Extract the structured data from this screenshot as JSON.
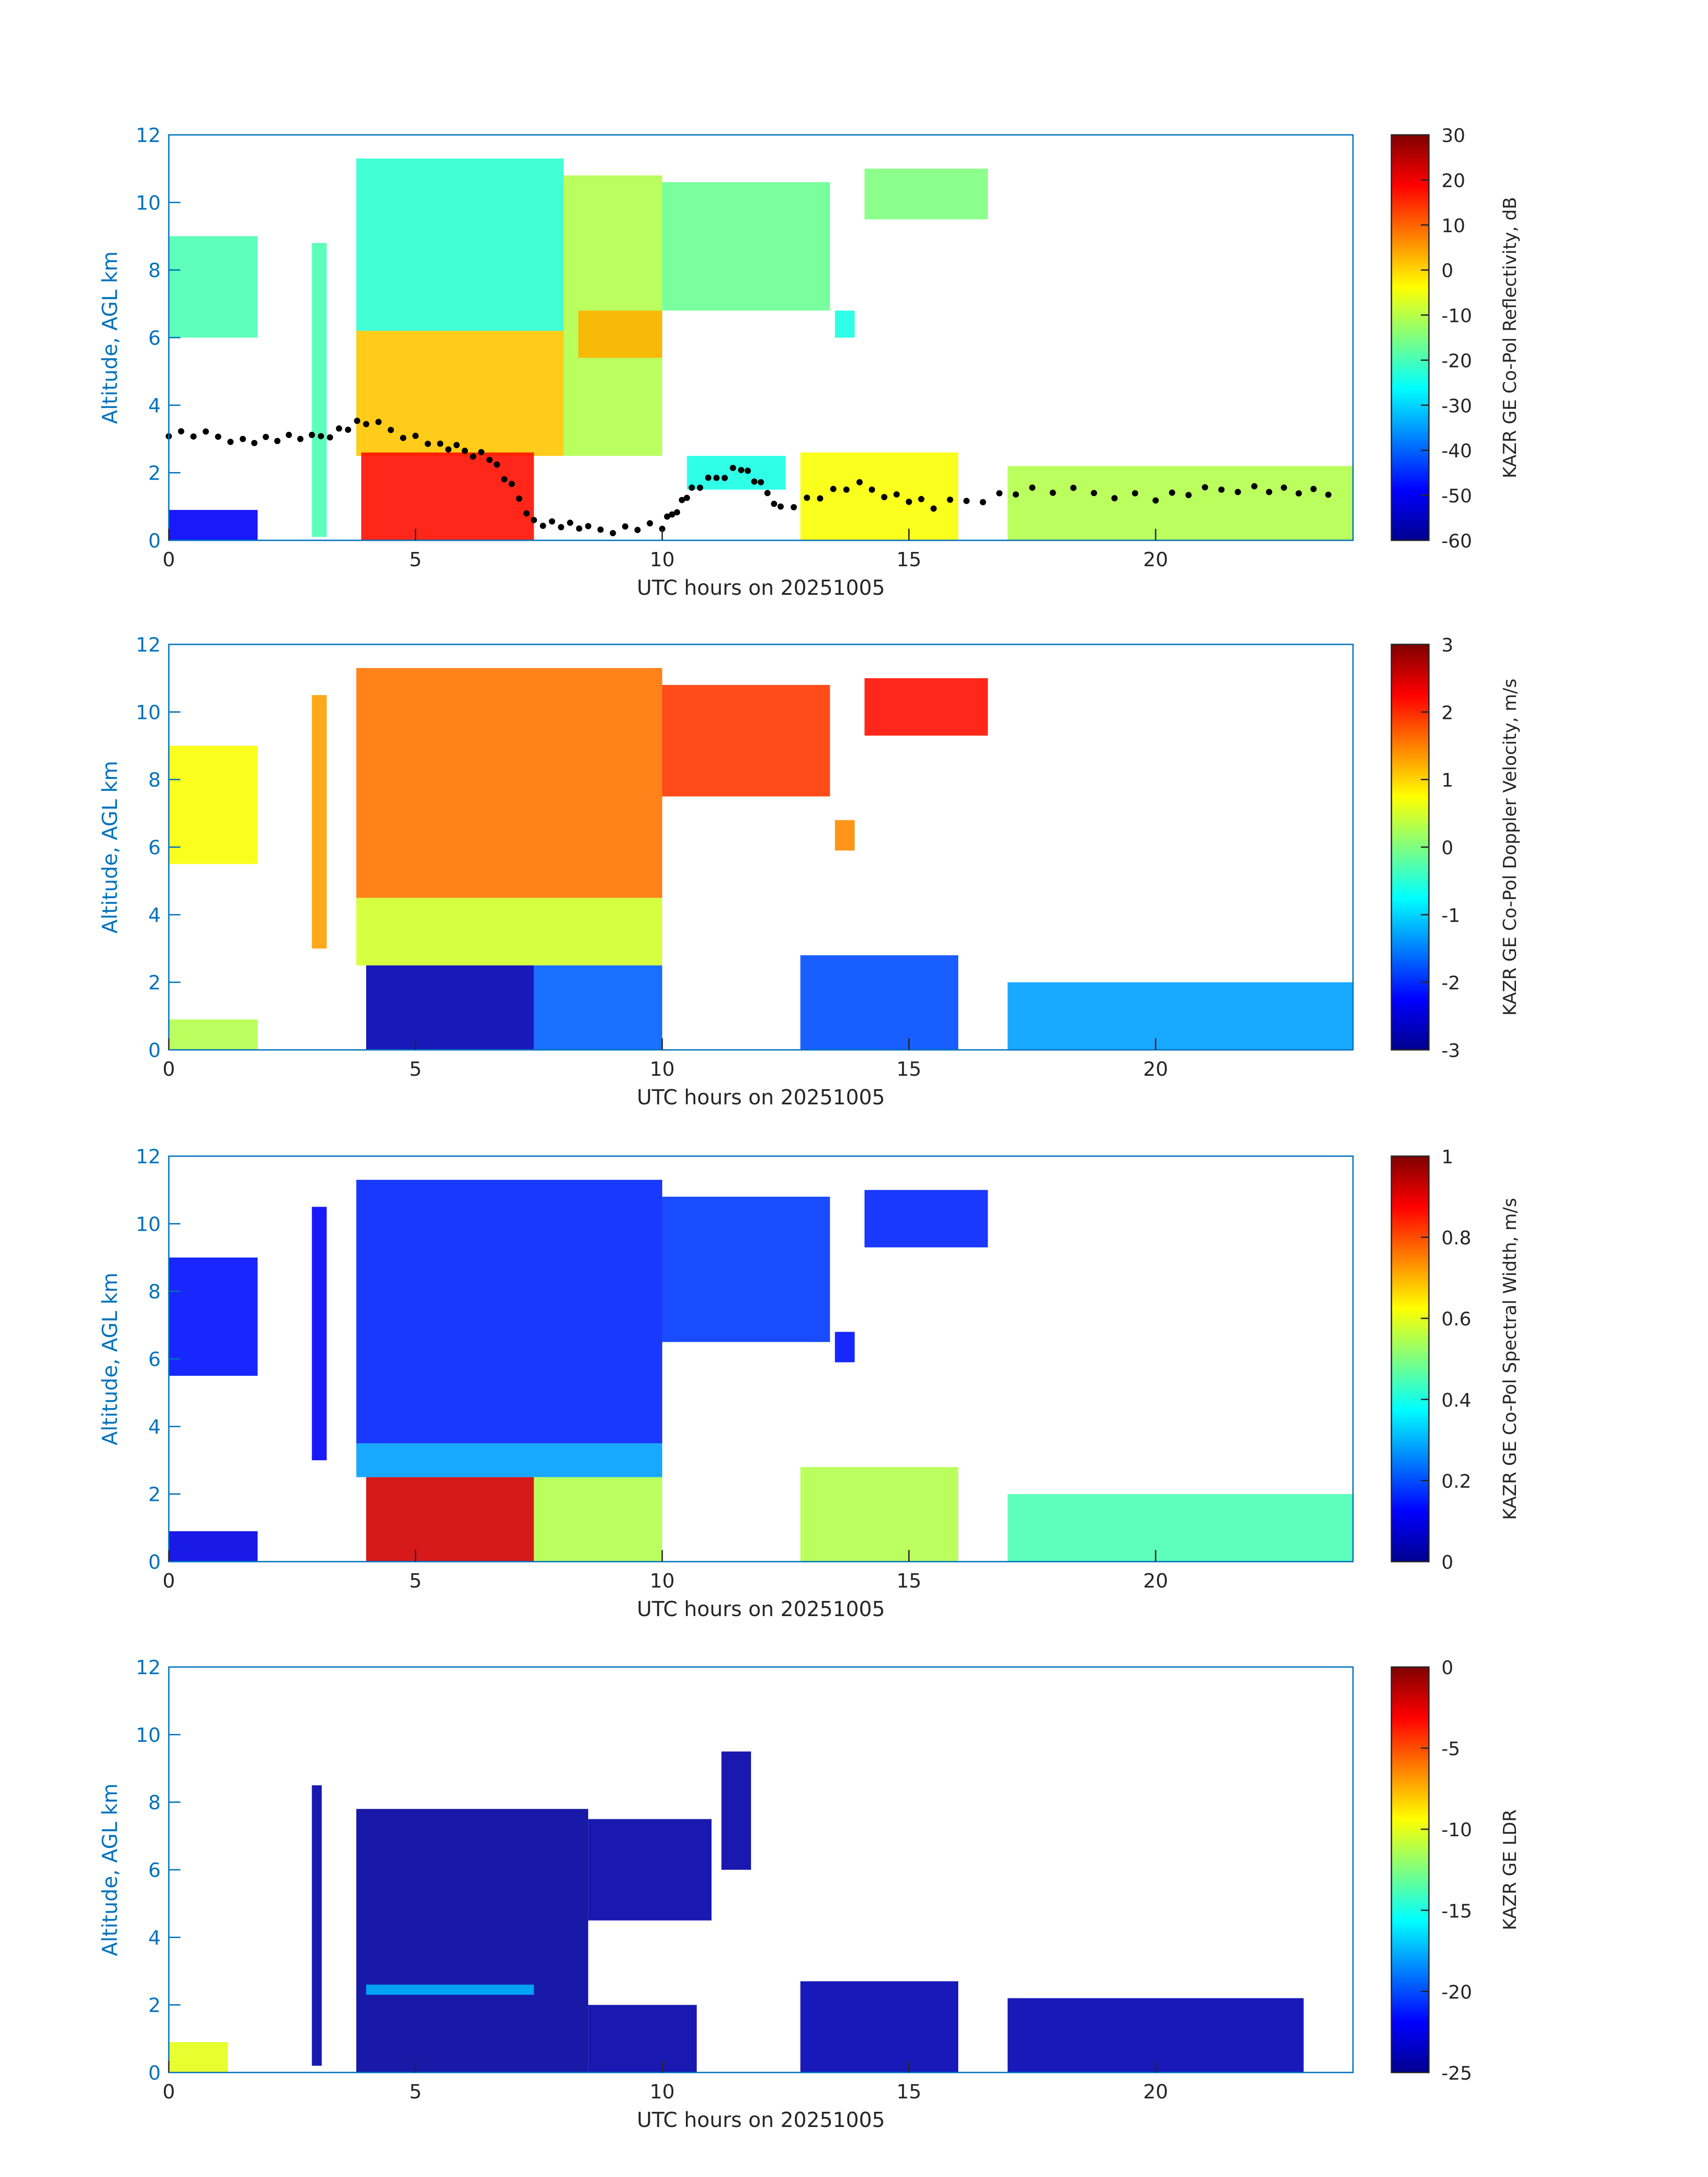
{
  "chart_data": [
    {
      "type": "heatmap",
      "xlabel": "UTC hours on 20251005",
      "ylabel": "Altitude, AGL km",
      "xlim": [
        0,
        24
      ],
      "ylim": [
        0,
        12
      ],
      "xticks": [
        "0",
        "5",
        "10",
        "15",
        "20"
      ],
      "yticks": [
        "0",
        "2",
        "4",
        "6",
        "8",
        "10",
        "12"
      ],
      "colorbar_label": "KAZR GE Co-Pol Reflectivity, dB",
      "colorbar_range": [
        -60,
        30
      ],
      "colorbar_ticks": [
        "30",
        "20",
        "10",
        "0",
        "-10",
        "-20",
        "-30",
        "-40",
        "-50",
        "-60"
      ],
      "colormap": "jet",
      "overlay": "cloud base points (black)"
    },
    {
      "type": "heatmap",
      "xlabel": "UTC hours on 20251005",
      "ylabel": "Altitude, AGL km",
      "xlim": [
        0,
        24
      ],
      "ylim": [
        0,
        12
      ],
      "xticks": [
        "0",
        "5",
        "10",
        "15",
        "20"
      ],
      "yticks": [
        "0",
        "2",
        "4",
        "6",
        "8",
        "10",
        "12"
      ],
      "colorbar_label": "KAZR GE Co-Pol Doppler Velocity, m/s",
      "colorbar_range": [
        -3,
        3
      ],
      "colorbar_ticks": [
        "3",
        "2",
        "1",
        "0",
        "-1",
        "-2",
        "-3"
      ],
      "colormap": "jet"
    },
    {
      "type": "heatmap",
      "xlabel": "UTC hours on 20251005",
      "ylabel": "Altitude, AGL km",
      "xlim": [
        0,
        24
      ],
      "ylim": [
        0,
        12
      ],
      "xticks": [
        "0",
        "5",
        "10",
        "15",
        "20"
      ],
      "yticks": [
        "0",
        "2",
        "4",
        "6",
        "8",
        "10",
        "12"
      ],
      "colorbar_label": "KAZR GE Co-Pol Spectral Width, m/s",
      "colorbar_range": [
        0,
        1
      ],
      "colorbar_ticks": [
        "1",
        "0.8",
        "0.6",
        "0.4",
        "0.2",
        "0"
      ],
      "colormap": "jet"
    },
    {
      "type": "heatmap",
      "xlabel": "UTC hours on 20251005",
      "ylabel": "Altitude, AGL km",
      "xlim": [
        0,
        24
      ],
      "ylim": [
        0,
        12
      ],
      "xticks": [
        "0",
        "5",
        "10",
        "15",
        "20"
      ],
      "yticks": [
        "0",
        "2",
        "4",
        "6",
        "8",
        "10",
        "12"
      ],
      "colorbar_label": "KAZR GE LDR",
      "colorbar_range": [
        -25,
        0
      ],
      "colorbar_ticks": [
        "0",
        "-5",
        "-10",
        "-15",
        "-20",
        "-25"
      ],
      "colormap": "jet"
    }
  ],
  "colors": {
    "axis": "#0072bd",
    "tick_text": "#262626",
    "cloud_base": "#000000"
  }
}
